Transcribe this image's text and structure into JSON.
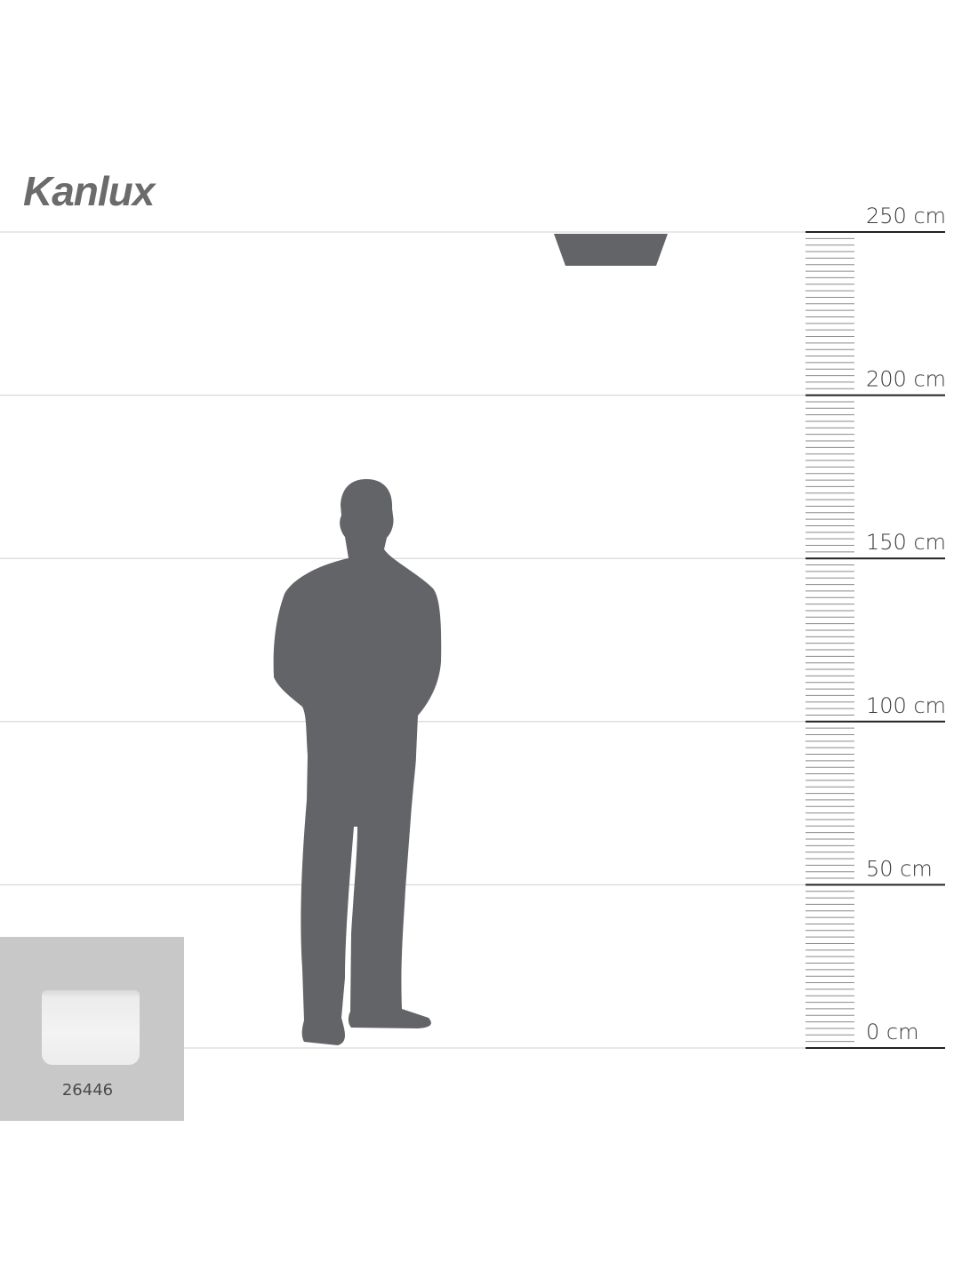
{
  "brand": {
    "logo_text": "Kanlux"
  },
  "scale": {
    "unit": "cm",
    "marks": [
      {
        "value": 250,
        "label": "250 cm"
      },
      {
        "value": 200,
        "label": "200 cm"
      },
      {
        "value": 150,
        "label": "150 cm"
      },
      {
        "value": 100,
        "label": "100 cm"
      },
      {
        "value": 50,
        "label": "50 cm"
      },
      {
        "value": 0,
        "label": "0 cm"
      }
    ],
    "minor_tick_step": 2
  },
  "figure": {
    "luminaire_mount_height": 250,
    "person_height": 175
  },
  "product": {
    "code": "26446"
  },
  "colors": {
    "silhouette": "#636467",
    "gridline": "#cfcfcf",
    "ruler": "#222222",
    "inset_bg": "#c8c8c8"
  }
}
